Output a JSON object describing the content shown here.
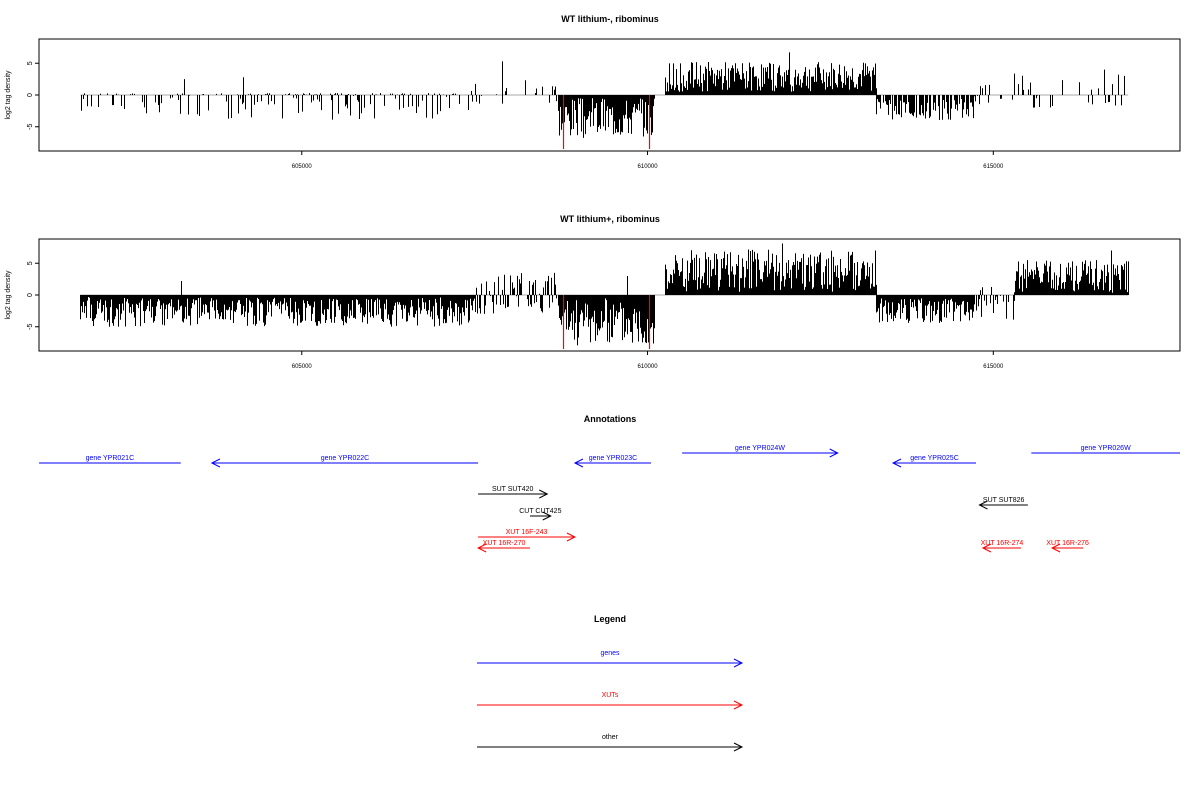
{
  "chart_data": [
    {
      "type": "bar",
      "title": "WT lithium-, ribominus",
      "ylabel": "log2 tag density",
      "xlabel": "",
      "xlim": [
        601200,
        617700
      ],
      "ylim": [
        -8.5,
        8.5
      ],
      "xticks": [
        605000,
        610000,
        615000
      ],
      "yticks": [
        -5,
        0,
        5
      ],
      "grid": false,
      "baseline": [
        601800,
        616950
      ],
      "series": [
        {
          "color": "#000000",
          "segments": [
            {
              "from": 601800,
              "to": 603500,
              "min": 0,
              "max": 0.3,
              "neg_min": -3.2,
              "neg_max": 0,
              "density": 0.35,
              "seed": 11
            },
            {
              "from": 603500,
              "to": 607400,
              "min": 0,
              "max": 0.3,
              "neg_min": -4.0,
              "neg_max": 0,
              "density": 0.45,
              "seed": 12
            },
            {
              "from": 607400,
              "to": 608700,
              "min": 0,
              "max": 2.5,
              "neg_min": -1.5,
              "neg_max": 0,
              "density": 0.15,
              "seed": 13
            },
            {
              "from": 608700,
              "to": 610100,
              "min": -6.8,
              "max": -0.5,
              "neg_min": 0,
              "neg_max": 0,
              "density": 1.0,
              "seed": 14
            },
            {
              "from": 610250,
              "to": 613300,
              "min": 0.5,
              "max": 5.2,
              "neg_min": 0,
              "neg_max": 0,
              "density": 1.0,
              "seed": 15
            },
            {
              "from": 613300,
              "to": 614700,
              "min": -4.0,
              "max": -0.5,
              "neg_min": 0,
              "neg_max": 0,
              "density": 0.7,
              "seed": 16
            },
            {
              "from": 614700,
              "to": 616950,
              "min": 0.5,
              "max": 3.5,
              "neg_min": -2.0,
              "neg_max": 0,
              "density": 0.25,
              "seed": 17
            }
          ],
          "spikes": [
            {
              "x": 603300,
              "y": 2.5
            },
            {
              "x": 604150,
              "y": 2.8
            },
            {
              "x": 607900,
              "y": 5.3
            },
            {
              "x": 612050,
              "y": 6.7
            },
            {
              "x": 616600,
              "y": 4.0
            },
            {
              "x": 616800,
              "y": 3.2
            }
          ]
        },
        {
          "color": "#ff0000",
          "bars": [
            {
              "x": 608780,
              "y": -8.5
            },
            {
              "x": 610020,
              "y": -8.5
            }
          ]
        }
      ]
    },
    {
      "type": "bar",
      "title": "WT lithium+, ribominus",
      "ylabel": "log2 tag density",
      "xlabel": "",
      "xlim": [
        601200,
        617700
      ],
      "ylim": [
        -8.5,
        8.5
      ],
      "xticks": [
        605000,
        610000,
        615000
      ],
      "yticks": [
        -5,
        0,
        5
      ],
      "grid": false,
      "baseline": [
        601800,
        616950
      ],
      "series": [
        {
          "color": "#000000",
          "segments": [
            {
              "from": 601800,
              "to": 607500,
              "min": -5.0,
              "max": -0.3,
              "neg_min": 0,
              "neg_max": 0,
              "density": 1.0,
              "seed": 21
            },
            {
              "from": 607500,
              "to": 608700,
              "min": -3.0,
              "max": 3.5,
              "neg_min": 0,
              "neg_max": 0,
              "density": 0.7,
              "seed": 22
            },
            {
              "from": 608700,
              "to": 610100,
              "min": -8.0,
              "max": -0.5,
              "neg_min": 0,
              "neg_max": 0,
              "density": 1.0,
              "seed": 23
            },
            {
              "from": 610250,
              "to": 613300,
              "min": 0.5,
              "max": 7.2,
              "neg_min": 0,
              "neg_max": 0,
              "density": 1.0,
              "seed": 24
            },
            {
              "from": 613300,
              "to": 614700,
              "min": -4.5,
              "max": -0.5,
              "neg_min": 0,
              "neg_max": 0,
              "density": 1.0,
              "seed": 25
            },
            {
              "from": 614700,
              "to": 615300,
              "min": -4.0,
              "max": 2.0,
              "neg_min": 0,
              "neg_max": 0,
              "density": 0.5,
              "seed": 26
            },
            {
              "from": 615300,
              "to": 616950,
              "min": 0.3,
              "max": 5.5,
              "neg_min": 0,
              "neg_max": 0,
              "density": 1.0,
              "seed": 27
            }
          ],
          "spikes": [
            {
              "x": 603250,
              "y": 2.2
            },
            {
              "x": 609700,
              "y": 3.0
            },
            {
              "x": 611950,
              "y": 8.1
            },
            {
              "x": 616700,
              "y": 7.0
            },
            {
              "x": 616950,
              "y": 5.3
            }
          ]
        },
        {
          "color": "#ff0000",
          "bars": [
            {
              "x": 608780,
              "y": -8.5
            },
            {
              "x": 610020,
              "y": -8.5
            }
          ]
        }
      ]
    },
    {
      "type": "annotation-track",
      "title": "Annotations",
      "features": [
        {
          "label": "gene YPR021C",
          "color": "#0000ff",
          "from": 601200,
          "to": 603250,
          "dir": "none",
          "row": 0
        },
        {
          "label": "gene YPR022C",
          "color": "#0000ff",
          "from": 603700,
          "to": 607550,
          "dir": "left",
          "row": 0
        },
        {
          "label": "gene YPR023C",
          "color": "#0000ff",
          "from": 608950,
          "to": 610050,
          "dir": "left",
          "row": 0
        },
        {
          "label": "gene YPR024W",
          "color": "#0000ff",
          "from": 610500,
          "to": 612750,
          "dir": "right",
          "row": -1
        },
        {
          "label": "gene YPR025C",
          "color": "#0000ff",
          "from": 613550,
          "to": 614750,
          "dir": "left",
          "row": 0
        },
        {
          "label": "gene YPR026W",
          "color": "#0000ff",
          "from": 615550,
          "to": 617700,
          "dir": "none",
          "row": -1
        },
        {
          "label": "SUT SUT420",
          "color": "#000000",
          "from": 607550,
          "to": 608550,
          "dir": "right",
          "row": 3
        },
        {
          "label": "SUT SUT826",
          "color": "#000000",
          "from": 614800,
          "to": 615500,
          "dir": "left",
          "row": 4
        },
        {
          "label": "CUT CUT425",
          "color": "#000000",
          "from": 608300,
          "to": 608600,
          "dir": "right",
          "row": 5
        },
        {
          "label": "XUT 16F-243",
          "color": "#ff0000",
          "from": 607550,
          "to": 608950,
          "dir": "right",
          "row": 7
        },
        {
          "label": "XUT 16R-270",
          "color": "#ff0000",
          "from": 607550,
          "to": 608300,
          "dir": "left",
          "row": 8
        },
        {
          "label": "XUT 16R-274",
          "color": "#ff0000",
          "from": 614850,
          "to": 615400,
          "dir": "left",
          "row": 8
        },
        {
          "label": "XUT 16R-276",
          "color": "#ff0000",
          "from": 615850,
          "to": 616300,
          "dir": "left",
          "row": 8
        }
      ]
    },
    {
      "type": "legend",
      "title": "Legend",
      "entries": [
        {
          "label": "genes",
          "color": "#0000ff"
        },
        {
          "label": "XUTs",
          "color": "#ff0000"
        },
        {
          "label": "other",
          "color": "#000000"
        }
      ]
    }
  ]
}
